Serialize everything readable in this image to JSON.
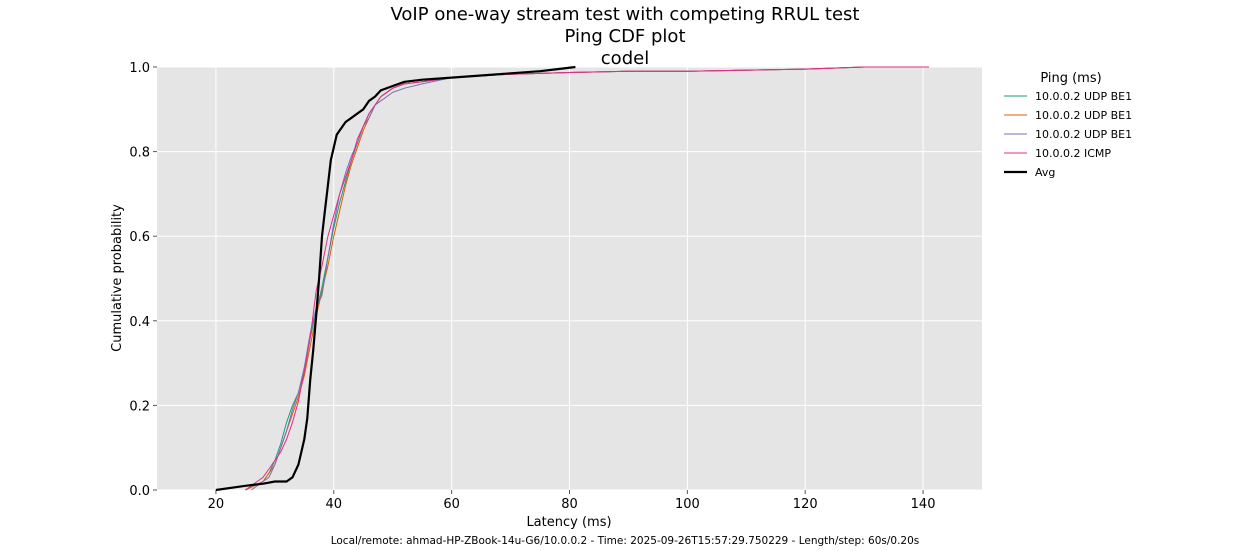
{
  "chart_data": {
    "type": "line",
    "title": [
      "VoIP one-way stream test with competing RRUL test",
      "Ping CDF plot",
      "codel"
    ],
    "xlabel": "Latency (ms)",
    "ylabel": "Cumulative probability",
    "xlim": [
      10,
      150
    ],
    "ylim": [
      0,
      1.0
    ],
    "xticks": [
      20,
      40,
      60,
      80,
      100,
      120,
      140
    ],
    "yticks": [
      0.0,
      0.2,
      0.4,
      0.6,
      0.8,
      1.0
    ],
    "xtick_labels": [
      "20",
      "40",
      "60",
      "80",
      "100",
      "120",
      "140"
    ],
    "ytick_labels": [
      "0.0",
      "0.2",
      "0.4",
      "0.6",
      "0.8",
      "1.0"
    ],
    "grid": true,
    "background": "#e5e5e5",
    "legend": {
      "title": "Ping (ms)",
      "placement": "right-outside-top"
    },
    "series": [
      {
        "name": "10.0.0.2 UDP BE1",
        "color": "#1b9e77",
        "width": 1,
        "x": [
          25,
          28,
          29,
          30,
          31,
          32,
          33,
          34,
          35,
          36,
          37,
          38,
          39,
          40,
          41,
          42,
          43,
          44,
          45,
          46,
          47,
          48,
          50,
          52,
          55,
          60,
          70,
          80,
          90,
          100,
          120,
          130,
          141
        ],
        "y": [
          0.0,
          0.02,
          0.04,
          0.07,
          0.11,
          0.16,
          0.2,
          0.23,
          0.28,
          0.36,
          0.42,
          0.48,
          0.55,
          0.62,
          0.68,
          0.73,
          0.78,
          0.82,
          0.86,
          0.89,
          0.91,
          0.93,
          0.95,
          0.96,
          0.965,
          0.975,
          0.983,
          0.987,
          0.99,
          0.99,
          0.995,
          1.0,
          1.0
        ]
      },
      {
        "name": "10.0.0.2 UDP BE1",
        "color": "#d95f02",
        "width": 1,
        "x": [
          25,
          28,
          29,
          30,
          31,
          32,
          33,
          34,
          35,
          36,
          37,
          38,
          39,
          40,
          41,
          42,
          43,
          44,
          45,
          46,
          47,
          48,
          50,
          52,
          55,
          60,
          70,
          80,
          90,
          100,
          120,
          130,
          141
        ],
        "y": [
          0.0,
          0.02,
          0.04,
          0.06,
          0.1,
          0.14,
          0.18,
          0.22,
          0.27,
          0.34,
          0.41,
          0.47,
          0.53,
          0.6,
          0.66,
          0.72,
          0.77,
          0.81,
          0.85,
          0.88,
          0.91,
          0.93,
          0.95,
          0.96,
          0.965,
          0.975,
          0.983,
          0.987,
          0.99,
          0.99,
          0.995,
          1.0,
          1.0
        ]
      },
      {
        "name": "10.0.0.2 UDP BE1",
        "color": "#7570b3",
        "width": 1,
        "x": [
          26,
          28,
          29,
          30,
          31,
          32,
          33,
          34,
          35,
          36,
          37,
          38,
          39,
          40,
          41,
          42,
          43,
          44,
          45,
          46,
          47,
          48,
          50,
          52,
          55,
          60,
          70,
          80,
          90,
          100,
          120,
          130,
          141
        ],
        "y": [
          0.0,
          0.02,
          0.03,
          0.06,
          0.1,
          0.14,
          0.19,
          0.23,
          0.29,
          0.37,
          0.43,
          0.46,
          0.55,
          0.63,
          0.7,
          0.75,
          0.79,
          0.82,
          0.86,
          0.88,
          0.91,
          0.92,
          0.94,
          0.95,
          0.96,
          0.975,
          0.983,
          0.987,
          0.99,
          0.99,
          0.995,
          1.0,
          1.0
        ]
      },
      {
        "name": "10.0.0.2 ICMP",
        "color": "#e7298a",
        "width": 1,
        "x": [
          25,
          27,
          28,
          29,
          30,
          31,
          32,
          33,
          34,
          35,
          36,
          37,
          38,
          39,
          40,
          41,
          42,
          43,
          44,
          45,
          46,
          47,
          48,
          50,
          52,
          55,
          60,
          70,
          80,
          90,
          100,
          120,
          130,
          141
        ],
        "y": [
          0.0,
          0.02,
          0.03,
          0.05,
          0.07,
          0.09,
          0.12,
          0.16,
          0.21,
          0.28,
          0.36,
          0.47,
          0.53,
          0.6,
          0.65,
          0.7,
          0.74,
          0.78,
          0.83,
          0.86,
          0.89,
          0.91,
          0.93,
          0.95,
          0.96,
          0.965,
          0.975,
          0.983,
          0.987,
          0.99,
          0.99,
          0.995,
          1.0,
          1.0
        ]
      },
      {
        "name": "Avg",
        "color": "#000000",
        "width": 2.2,
        "x": [
          20,
          25,
          28,
          30,
          32,
          33,
          34,
          35,
          35.5,
          36,
          36.5,
          37,
          37.5,
          38,
          38.5,
          39,
          39.5,
          40,
          40.5,
          41,
          42,
          43,
          44,
          45,
          46,
          47,
          48,
          50,
          52,
          55,
          60,
          65,
          70,
          75,
          78,
          81
        ],
        "y": [
          0.0,
          0.01,
          0.015,
          0.02,
          0.02,
          0.03,
          0.06,
          0.12,
          0.17,
          0.26,
          0.33,
          0.41,
          0.5,
          0.6,
          0.66,
          0.72,
          0.78,
          0.81,
          0.84,
          0.85,
          0.87,
          0.88,
          0.89,
          0.9,
          0.92,
          0.93,
          0.945,
          0.955,
          0.965,
          0.97,
          0.975,
          0.98,
          0.985,
          0.99,
          0.995,
          1.0
        ]
      }
    ]
  },
  "footer": "Local/remote: ahmad-HP-ZBook-14u-G6/10.0.0.2 - Time: 2025-09-26T15:57:29.750229 - Length/step: 60s/0.20s"
}
